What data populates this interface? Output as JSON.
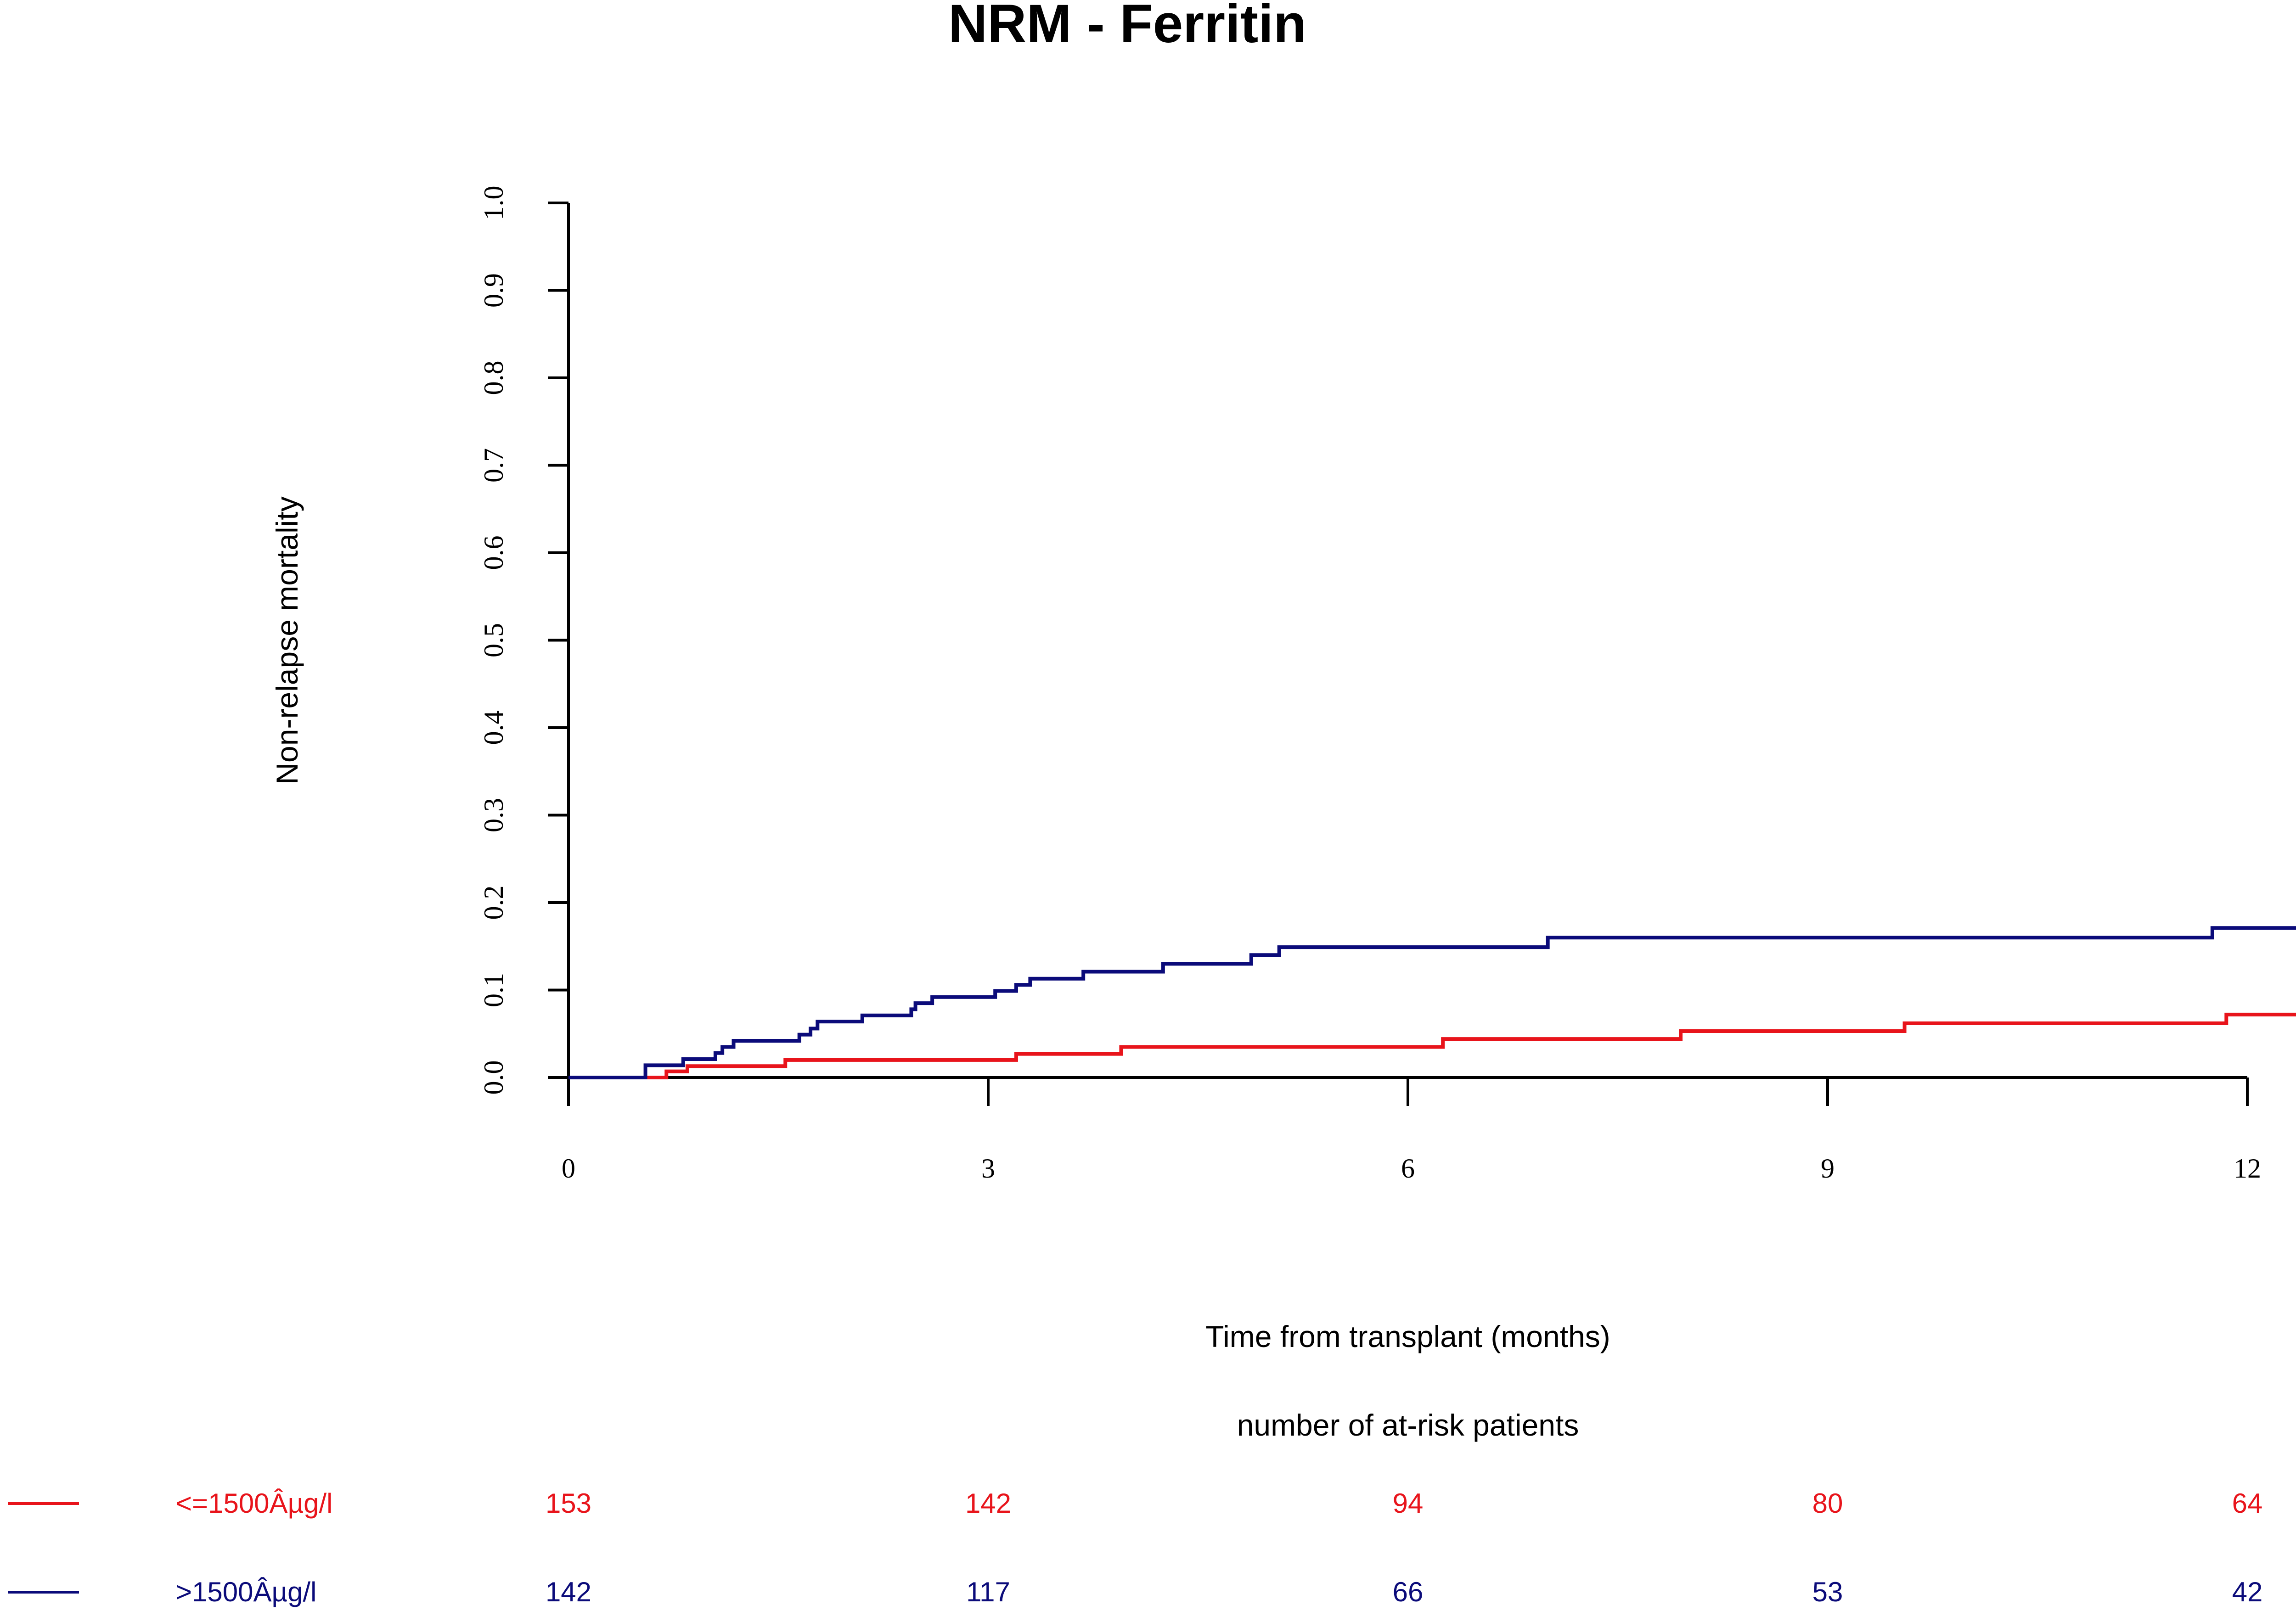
{
  "chart_data": {
    "type": "line",
    "step": true,
    "title": "NRM - Ferritin",
    "xlabel": "Time from transplant (months)",
    "ylabel": "Non-relapse mortality",
    "xlim": [
      0,
      12.6
    ],
    "ylim": [
      0,
      1
    ],
    "x_ticks": [
      "0",
      "3",
      "6",
      "9",
      "12"
    ],
    "y_ticks": [
      "0.0",
      "0.1",
      "0.2",
      "0.3",
      "0.4",
      "0.5",
      "0.6",
      "0.7",
      "0.8",
      "0.9",
      "1.0"
    ],
    "series": [
      {
        "name": "<=1500Âµg/l",
        "color": "#e8141b",
        "x": [
          0,
          0.7,
          0.85,
          1.55,
          3.2,
          3.95,
          6.25,
          7.95,
          9.55,
          11.85,
          12.6
        ],
        "y": [
          0,
          0.007,
          0.013,
          0.02,
          0.027,
          0.035,
          0.044,
          0.053,
          0.062,
          0.072,
          0.072
        ]
      },
      {
        "name": ">1500Âµg/l",
        "color": "#0b0b7a",
        "x": [
          0,
          0.55,
          0.82,
          1.05,
          1.1,
          1.18,
          1.65,
          1.73,
          1.78,
          2.1,
          2.45,
          2.48,
          2.6,
          2.75,
          3.05,
          3.2,
          3.3,
          3.68,
          4.25,
          4.88,
          5.08,
          7.0,
          11.75,
          12.6
        ],
        "y": [
          0,
          0.014,
          0.021,
          0.028,
          0.035,
          0.042,
          0.049,
          0.056,
          0.064,
          0.071,
          0.078,
          0.085,
          0.092,
          0.092,
          0.099,
          0.106,
          0.113,
          0.121,
          0.13,
          0.14,
          0.149,
          0.16,
          0.171,
          0.171
        ]
      }
    ],
    "risk_table": {
      "title": "number of at-risk patients",
      "times": [
        0,
        3,
        6,
        9,
        12
      ],
      "rows": [
        {
          "label": "<=1500Âµg/l",
          "color": "#e8141b",
          "values": [
            "153",
            "142",
            "94",
            "80",
            "64"
          ]
        },
        {
          "label": ">1500Âµg/l",
          "color": "#0b0b7a",
          "values": [
            "142",
            "117",
            "66",
            "53",
            "42"
          ]
        }
      ]
    }
  }
}
